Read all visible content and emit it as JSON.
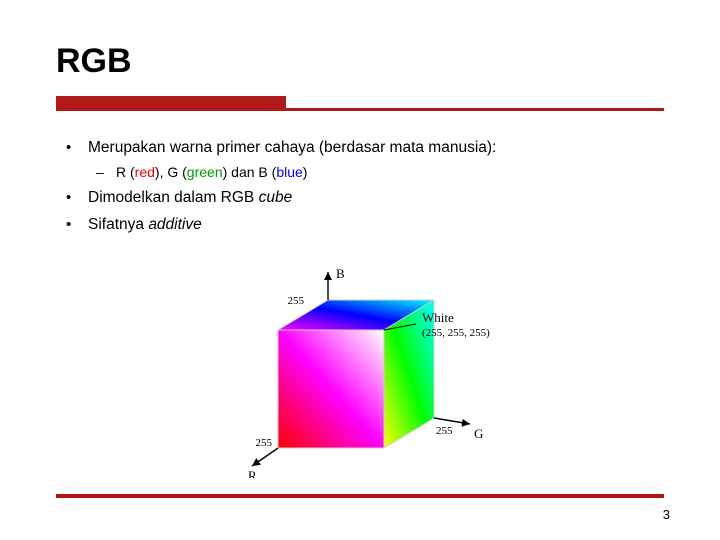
{
  "title": "RGB",
  "accent_color": "#b01917",
  "text_color": "#000000",
  "bullets": [
    {
      "runs": [
        {
          "text": "Merupakan warna primer cahaya (berdasar mata manusia):"
        }
      ],
      "sub": [
        {
          "runs": [
            {
              "text": "R ("
            },
            {
              "text": "red",
              "color": "#ff0000"
            },
            {
              "text": "), G ("
            },
            {
              "text": "green",
              "color": "#009900"
            },
            {
              "text": ") dan B ("
            },
            {
              "text": "blue",
              "color": "#0000ff"
            },
            {
              "text": ")"
            }
          ]
        }
      ]
    },
    {
      "runs": [
        {
          "text": "Dimodelkan dalam RGB "
        },
        {
          "text": "cube",
          "italic": true
        }
      ]
    },
    {
      "runs": [
        {
          "text": "Sifatnya "
        },
        {
          "text": "additive",
          "italic": true
        }
      ]
    }
  ],
  "figure": {
    "type": "diagram",
    "background": "#ffffff",
    "axis_color": "#000000",
    "label_fontsize": 13,
    "tick_fontsize": 11,
    "tick_value": "255",
    "axis_labels": {
      "R": "R",
      "G": "G",
      "B": "B"
    },
    "white_label_line1": "White",
    "white_label_line2": "(255, 255, 255)",
    "cube": {
      "stroke": "#cccccc",
      "stroke_width": 1,
      "vertex_colors": {
        "origin": "#000000",
        "R": "#ff0000",
        "G": "#00ff00",
        "B": "#0000ff",
        "RG": "#ffff00",
        "RB": "#ff00ff",
        "GB": "#00ffff",
        "white": "#ffffff"
      }
    }
  },
  "page_number": "3"
}
